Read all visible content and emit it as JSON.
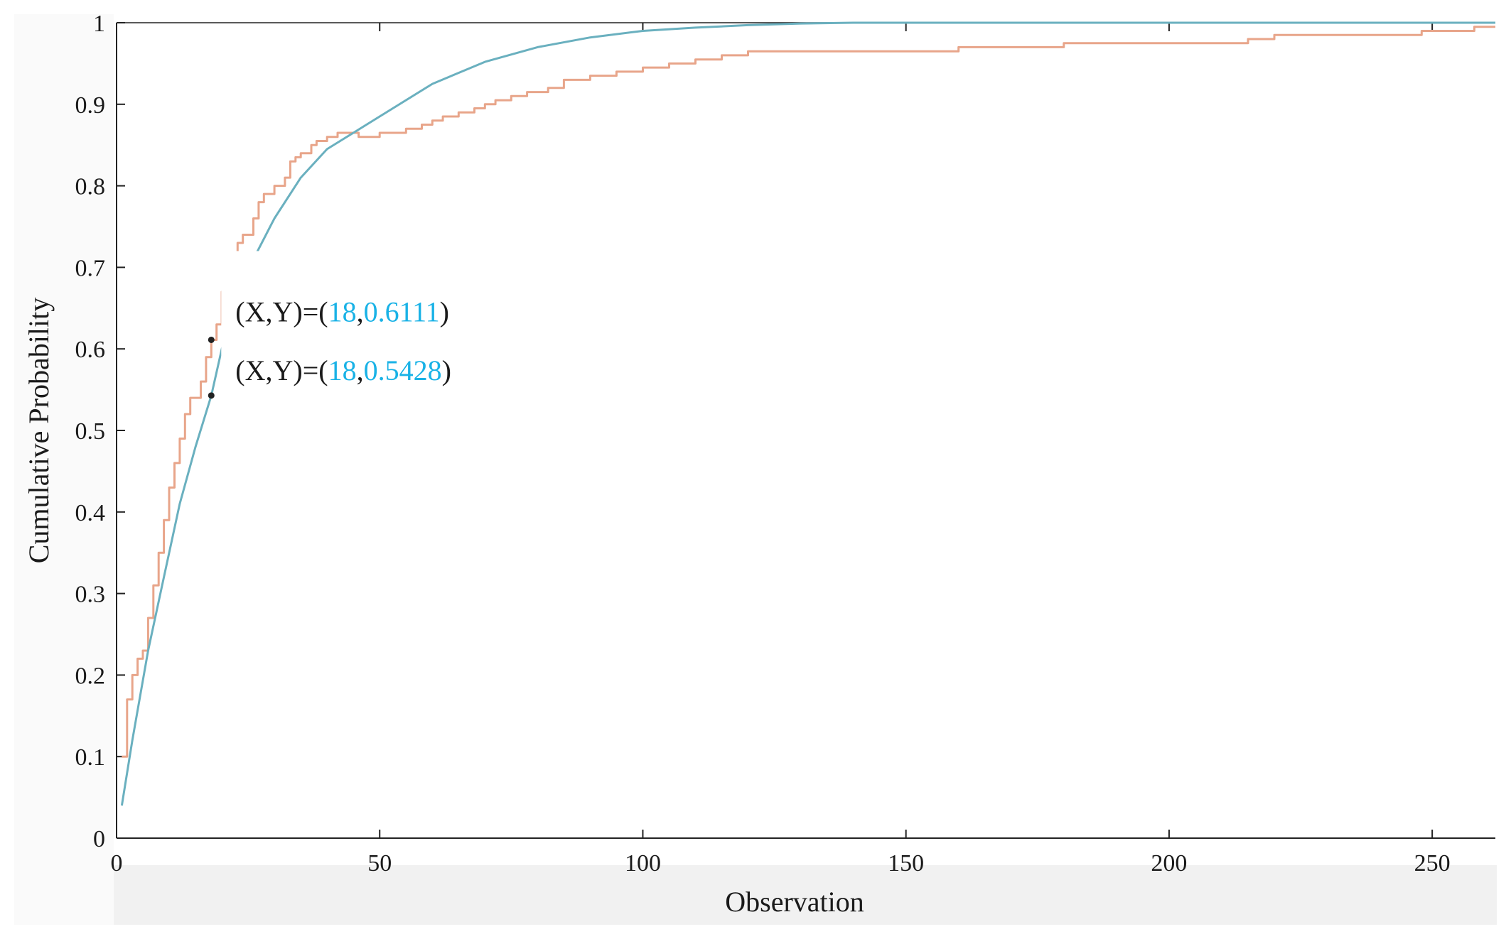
{
  "chart_data": {
    "type": "line",
    "title": "",
    "xlabel": "Observation",
    "ylabel": "Cumulative Probability",
    "xlim": [
      0,
      262
    ],
    "ylim": [
      0,
      1
    ],
    "x_ticks": [
      0,
      50,
      100,
      150,
      200,
      250
    ],
    "y_ticks": [
      0,
      0.1,
      0.2,
      0.3,
      0.4,
      0.5,
      0.6,
      0.7,
      0.8,
      0.9,
      1
    ],
    "x_tick_labels": [
      "0",
      "50",
      "100",
      "150",
      "200",
      "250"
    ],
    "y_tick_labels": [
      "0",
      "0.1",
      "0.2",
      "0.3",
      "0.4",
      "0.5",
      "0.6",
      "0.7",
      "0.8",
      "0.9",
      "1"
    ],
    "grid": false,
    "legend": null,
    "series": [
      {
        "color": "#e8a58a",
        "step": true,
        "x": [
          1,
          2,
          3,
          4,
          5,
          6,
          7,
          8,
          9,
          10,
          11,
          12,
          13,
          14,
          15,
          16,
          17,
          18,
          19,
          20,
          21,
          22,
          23,
          24,
          25,
          26,
          27,
          28,
          29,
          30,
          31,
          32,
          33,
          34,
          35,
          36,
          37,
          38,
          40,
          41,
          42,
          44,
          46,
          50,
          55,
          58,
          60,
          62,
          65,
          68,
          70,
          72,
          75,
          78,
          82,
          85,
          90,
          95,
          100,
          105,
          110,
          115,
          120,
          125,
          130,
          140,
          160,
          180,
          200,
          215,
          220,
          230,
          245,
          248,
          250,
          255,
          258,
          262
        ],
        "y": [
          0.1,
          0.17,
          0.2,
          0.22,
          0.23,
          0.27,
          0.31,
          0.35,
          0.39,
          0.43,
          0.46,
          0.49,
          0.52,
          0.54,
          0.54,
          0.56,
          0.59,
          0.6111,
          0.63,
          0.67,
          0.69,
          0.71,
          0.73,
          0.74,
          0.74,
          0.76,
          0.78,
          0.79,
          0.79,
          0.8,
          0.8,
          0.81,
          0.83,
          0.835,
          0.84,
          0.84,
          0.85,
          0.855,
          0.86,
          0.86,
          0.865,
          0.865,
          0.86,
          0.865,
          0.87,
          0.875,
          0.88,
          0.885,
          0.89,
          0.895,
          0.9,
          0.905,
          0.91,
          0.915,
          0.92,
          0.93,
          0.935,
          0.94,
          0.945,
          0.95,
          0.955,
          0.96,
          0.965,
          0.965,
          0.965,
          0.965,
          0.97,
          0.975,
          0.975,
          0.98,
          0.985,
          0.985,
          0.985,
          0.99,
          0.99,
          0.99,
          0.995,
          0.995
        ]
      },
      {
        "color": "#6ab0bf",
        "x": [
          1,
          3,
          6,
          9,
          12,
          15,
          18,
          20,
          23,
          26,
          30,
          35,
          40,
          45,
          50,
          60,
          70,
          80,
          90,
          100,
          110,
          120,
          130,
          140,
          150,
          175,
          200,
          225,
          250,
          262
        ],
        "y": [
          0.04,
          0.12,
          0.23,
          0.32,
          0.41,
          0.48,
          0.5428,
          0.6,
          0.66,
          0.71,
          0.76,
          0.81,
          0.845,
          0.865,
          0.885,
          0.925,
          0.952,
          0.97,
          0.982,
          0.99,
          0.994,
          0.997,
          0.999,
          1.0,
          1.0,
          1.0,
          1.0,
          1.0,
          1.0,
          1.0
        ]
      }
    ],
    "annotations": [
      {
        "x": 18,
        "y": 0.6111,
        "label_prefix": "(X,Y)=(",
        "x_text": "18",
        "sep": ",",
        "y_text": "0.6111",
        "suffix": ")"
      },
      {
        "x": 18,
        "y": 0.5428,
        "label_prefix": "(X,Y)=(",
        "x_text": "18",
        "sep": ",",
        "y_text": "0.5428",
        "suffix": ")"
      }
    ],
    "annotation_value_color": "#19b2e6",
    "axis_color": "#222222"
  }
}
